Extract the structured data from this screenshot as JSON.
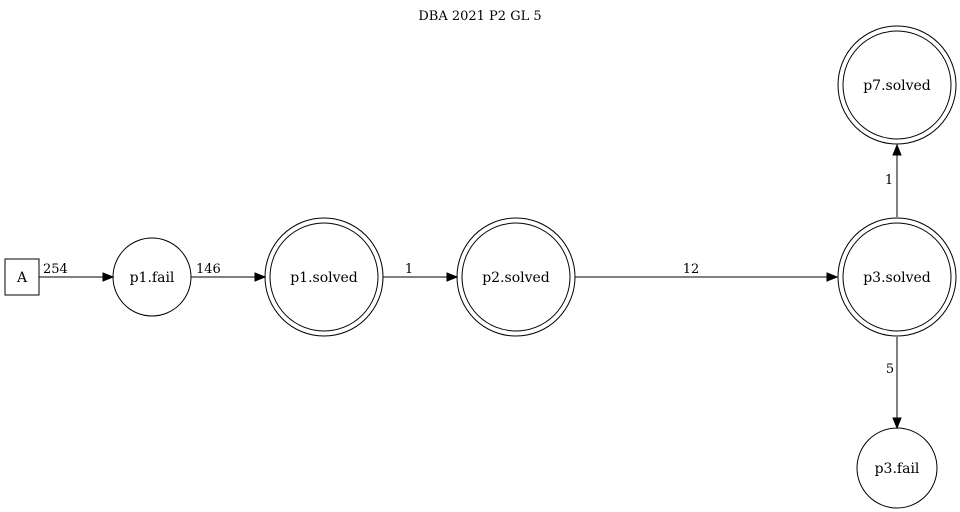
{
  "title": "DBA 2021 P2 GL 5",
  "nodes": {
    "start": {
      "label": "A",
      "shape": "box"
    },
    "p1_fail": {
      "label": "p1.fail",
      "shape": "circle"
    },
    "p1_solved": {
      "label": "p1.solved",
      "shape": "doublecircle"
    },
    "p2_solved": {
      "label": "p2.solved",
      "shape": "doublecircle"
    },
    "p3_solved": {
      "label": "p3.solved",
      "shape": "doublecircle"
    },
    "p7_solved": {
      "label": "p7.solved",
      "shape": "doublecircle"
    },
    "p3_fail": {
      "label": "p3.fail",
      "shape": "circle"
    }
  },
  "edges": {
    "a_to_p1fail": {
      "from": "A",
      "to": "p1.fail",
      "label": "254"
    },
    "p1fail_to_p1solved": {
      "from": "p1.fail",
      "to": "p1.solved",
      "label": "146"
    },
    "p1solved_to_p2solved": {
      "from": "p1.solved",
      "to": "p2.solved",
      "label": "1"
    },
    "p2solved_to_p3solved": {
      "from": "p2.solved",
      "to": "p3.solved",
      "label": "12"
    },
    "p3solved_to_p7solved": {
      "from": "p3.solved",
      "to": "p7.solved",
      "label": "1"
    },
    "p3solved_to_p3fail": {
      "from": "p3.solved",
      "to": "p3.fail",
      "label": "5"
    }
  }
}
